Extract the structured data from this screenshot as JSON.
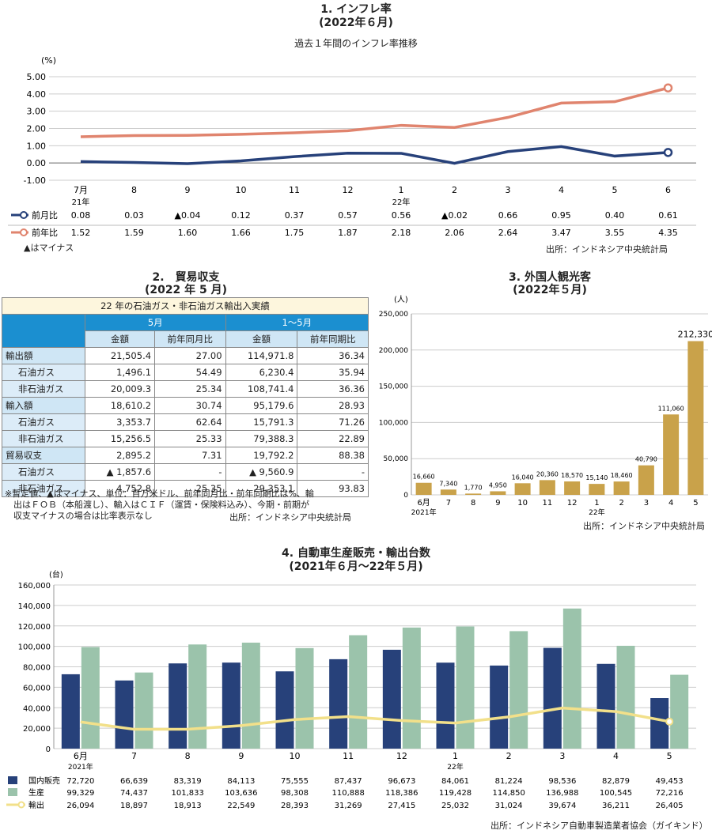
{
  "inflation": {
    "title": "1. インフレ率",
    "subtitle": "(2022年６月)",
    "caption": "過去１年間のインフレ率推移",
    "unit": "(%)",
    "source": "出所：インドネシア中央統計局",
    "note": "▲はマイナス",
    "year_labels": [
      "21年",
      "22年"
    ],
    "row_labels": [
      "前月比",
      "前年比"
    ],
    "mom_display": [
      "0.08",
      "0.03",
      "▲0.04",
      "0.12",
      "0.37",
      "0.57",
      "0.56",
      "▲0.02",
      "0.66",
      "0.95",
      "0.40",
      "0.61"
    ],
    "yoy_display": [
      "1.52",
      "1.59",
      "1.60",
      "1.66",
      "1.75",
      "1.87",
      "2.18",
      "2.06",
      "2.64",
      "3.47",
      "3.55",
      "4.35"
    ]
  },
  "trade": {
    "title": "2.　貿易収支",
    "subtitle": "(2022 年 5 月)",
    "header": "22 年の石油ガス・非石油ガス輸出入実績",
    "col_groups": [
      "5月",
      "1～5月"
    ],
    "col_heads": [
      "金額",
      "前年同月比",
      "金額",
      "前年同期比"
    ],
    "rows": [
      {
        "label": "輸出額",
        "indent": false,
        "cells": [
          "21,505.4",
          "27.00",
          "114,971.8",
          "36.34"
        ]
      },
      {
        "label": "石油ガス",
        "indent": true,
        "cells": [
          "1,496.1",
          "54.49",
          "6,230.4",
          "35.94"
        ]
      },
      {
        "label": "非石油ガス",
        "indent": true,
        "cells": [
          "20,009.3",
          "25.34",
          "108,741.4",
          "36.36"
        ]
      },
      {
        "label": "輸入額",
        "indent": false,
        "cells": [
          "18,610.2",
          "30.74",
          "95,179.6",
          "28.93"
        ]
      },
      {
        "label": "石油ガス",
        "indent": true,
        "cells": [
          "3,353.7",
          "62.64",
          "15,791.3",
          "71.26"
        ]
      },
      {
        "label": "非石油ガス",
        "indent": true,
        "cells": [
          "15,256.5",
          "25.33",
          "79,388.3",
          "22.89"
        ]
      },
      {
        "label": "貿易収支",
        "indent": false,
        "cells": [
          "2,895.2",
          "7.31",
          "19,792.2",
          "88.38"
        ]
      },
      {
        "label": "石油ガス",
        "indent": true,
        "cells": [
          "▲ 1,857.6",
          "-",
          "▲ 9,560.9",
          "-"
        ]
      },
      {
        "label": "非石油ガス",
        "indent": true,
        "cells": [
          "4,752.8",
          "25.35",
          "29,353.1",
          "93.83"
        ]
      }
    ],
    "note_lines": [
      "※暫定値、▲はマイナス、単位：百万米ドル、前年同月比・前年同期比は%、輸",
      "　出はＦＯＢ（本船渡し）、輸入はＣＩＦ（運賃・保険料込み）、今期・前期が",
      "　収支マイナスの場合は比率表示なし"
    ],
    "source": "出所：インドネシア中央統計局"
  },
  "tourists": {
    "title": "3. 外国人観光客",
    "subtitle": "(2022年５月)",
    "unit": "(人)",
    "year_labels": [
      "2021年",
      "22年"
    ],
    "source": "出所：インドネシア中央統計局"
  },
  "autos": {
    "title": "4. 自動車生産販売・輸出台数",
    "subtitle": "(2021年６月～22年５月)",
    "unit": "(台)",
    "year_labels": [
      "2021年",
      "22年"
    ],
    "source": "出所：インドネシア自動車製造業者協会（ガイキンド）"
  },
  "chart_data": [
    {
      "type": "line",
      "title": "1. インフレ率",
      "ylabel": "(%)",
      "x": [
        "7月",
        "8",
        "9",
        "10",
        "11",
        "12",
        "1",
        "2",
        "3",
        "4",
        "5",
        "6"
      ],
      "ylim": [
        -1.0,
        5.0
      ],
      "yticks": [
        "-1.00",
        "0.00",
        "1.00",
        "2.00",
        "3.00",
        "4.00",
        "5.00"
      ],
      "series": [
        {
          "name": "前月比",
          "color": "#27417a",
          "values": [
            0.08,
            0.03,
            -0.04,
            0.12,
            0.37,
            0.57,
            0.56,
            -0.02,
            0.66,
            0.95,
            0.4,
            0.61
          ]
        },
        {
          "name": "前年比",
          "color": "#e0846e",
          "values": [
            1.52,
            1.59,
            1.6,
            1.66,
            1.75,
            1.87,
            2.18,
            2.06,
            2.64,
            3.47,
            3.55,
            4.35
          ]
        }
      ],
      "grid": true
    },
    {
      "type": "bar",
      "title": "3. 外国人観光客",
      "ylabel": "(人)",
      "categories": [
        "6月",
        "7",
        "8",
        "9",
        "10",
        "11",
        "12",
        "1",
        "2",
        "3",
        "4",
        "5"
      ],
      "values": [
        16660,
        7340,
        1770,
        4950,
        16040,
        20360,
        18570,
        15140,
        18460,
        40790,
        111060,
        212330
      ],
      "labels": [
        "16,660",
        "7,340",
        "1,770",
        "4,950",
        "16,040",
        "20,360",
        "18,570",
        "15,140",
        "18,460",
        "40,790",
        "111,060",
        "212,330"
      ],
      "ylim": [
        0,
        250000
      ],
      "yticks": [
        "0",
        "50,000",
        "100,000",
        "150,000",
        "200,000",
        "250,000"
      ],
      "color": "#c9a24a"
    },
    {
      "type": "bar",
      "title": "4. 自動車生産販売・輸出台数",
      "ylabel": "(台)",
      "categories": [
        "6月",
        "7",
        "8",
        "9",
        "10",
        "11",
        "12",
        "1",
        "2",
        "3",
        "4",
        "5"
      ],
      "ylim": [
        0,
        160000
      ],
      "yticks": [
        "0",
        "20,000",
        "40,000",
        "60,000",
        "80,000",
        "100,000",
        "120,000",
        "140,000",
        "160,000"
      ],
      "series": [
        {
          "name": "国内販売",
          "kind": "bar",
          "color": "#27417a",
          "values": [
            72720,
            66639,
            83319,
            84113,
            75555,
            87437,
            96673,
            84061,
            81224,
            98536,
            82879,
            49453
          ],
          "labels": [
            "72,720",
            "66,639",
            "83,319",
            "84,113",
            "75,555",
            "87,437",
            "96,673",
            "84,061",
            "81,224",
            "98,536",
            "82,879",
            "49,453"
          ]
        },
        {
          "name": "生産",
          "kind": "bar",
          "color": "#9bc3ab",
          "values": [
            99329,
            74437,
            101833,
            103636,
            98308,
            110888,
            118386,
            119428,
            114850,
            136988,
            100545,
            72216
          ],
          "labels": [
            "99,329",
            "74,437",
            "101,833",
            "103,636",
            "98,308",
            "110,888",
            "118,386",
            "119,428",
            "114,850",
            "136,988",
            "100,545",
            "72,216"
          ]
        },
        {
          "name": "輸出",
          "kind": "line",
          "color": "#f2e08a",
          "values": [
            26094,
            18897,
            18913,
            22549,
            28393,
            31269,
            27415,
            25032,
            31024,
            39674,
            36211,
            26405
          ],
          "labels": [
            "26,094",
            "18,897",
            "18,913",
            "22,549",
            "28,393",
            "31,269",
            "27,415",
            "25,032",
            "31,024",
            "39,674",
            "36,211",
            "26,405"
          ]
        }
      ],
      "grid": true
    }
  ]
}
